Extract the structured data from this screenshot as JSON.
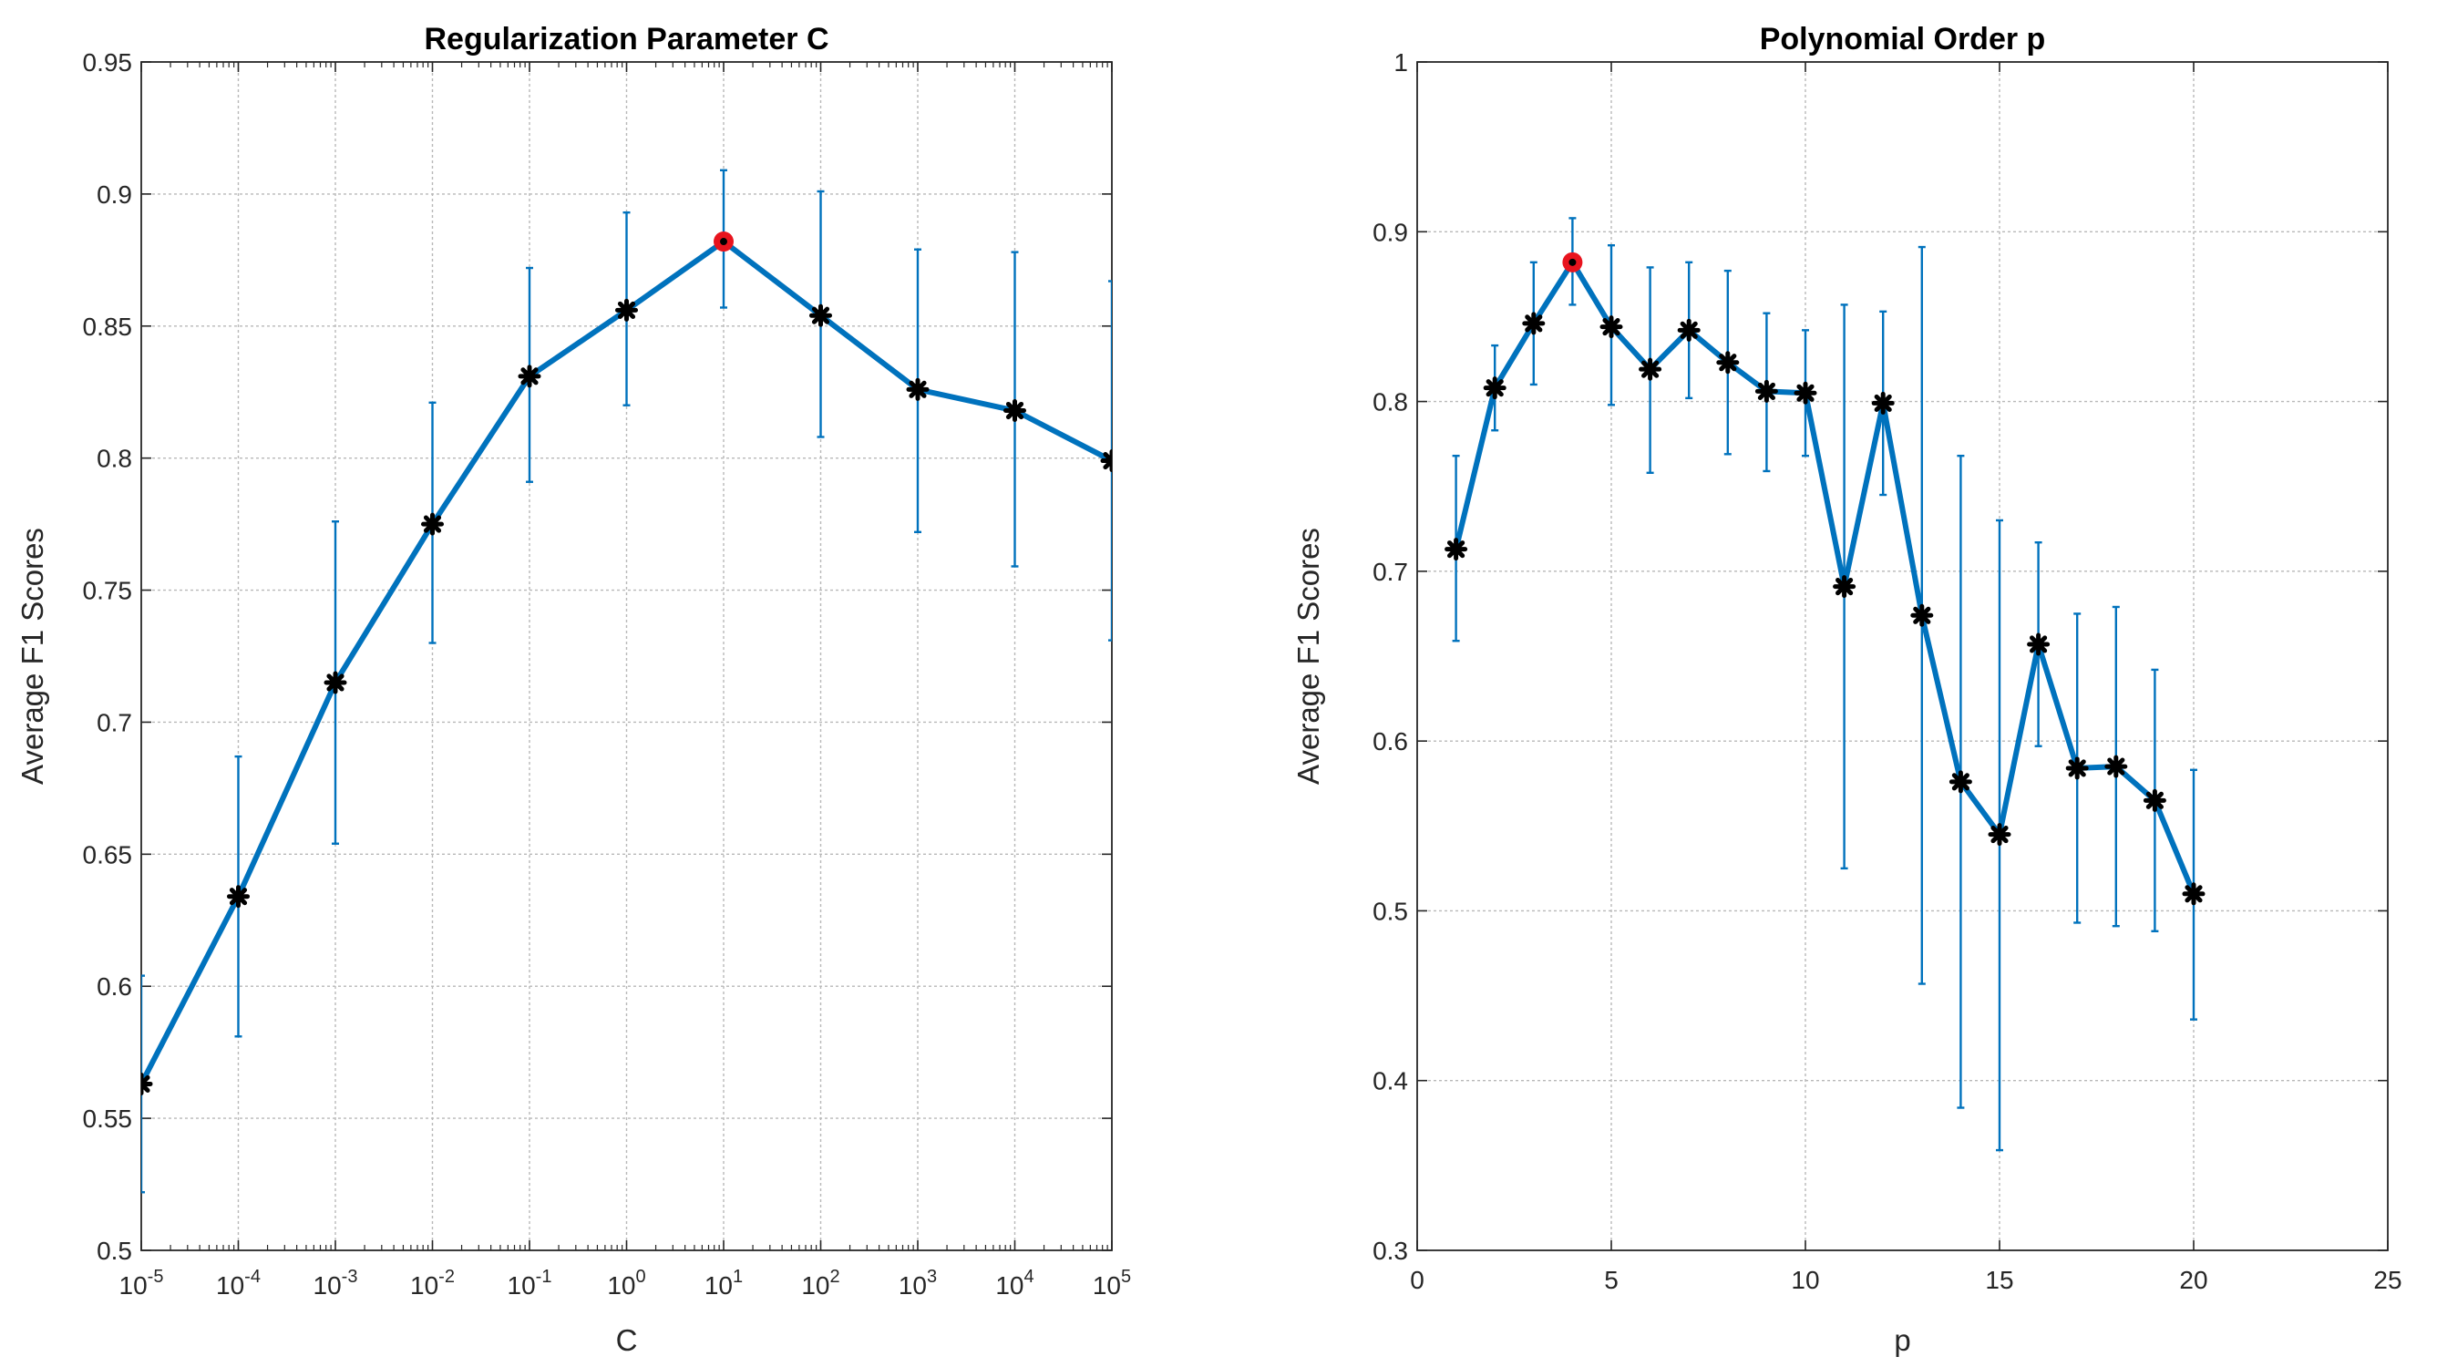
{
  "chart_data": [
    {
      "type": "line",
      "title": "Regularization Parameter C",
      "xlabel": "C",
      "ylabel": "Average F1 Scores",
      "xscale": "log",
      "xlim": [
        1e-05,
        100000
      ],
      "ylim": [
        0.5,
        0.95
      ],
      "xticks": [
        {
          "base": "10",
          "exp": "-5"
        },
        {
          "base": "10",
          "exp": "-4"
        },
        {
          "base": "10",
          "exp": "-3"
        },
        {
          "base": "10",
          "exp": "-2"
        },
        {
          "base": "10",
          "exp": "-1"
        },
        {
          "base": "10",
          "exp": "0"
        },
        {
          "base": "10",
          "exp": "1"
        },
        {
          "base": "10",
          "exp": "2"
        },
        {
          "base": "10",
          "exp": "3"
        },
        {
          "base": "10",
          "exp": "4"
        },
        {
          "base": "10",
          "exp": "5"
        }
      ],
      "yticks": [
        "0.5",
        "0.55",
        "0.6",
        "0.65",
        "0.7",
        "0.75",
        "0.8",
        "0.85",
        "0.9",
        "0.95"
      ],
      "grid": true,
      "line_color": "#0072BD",
      "marker_color": "#000000",
      "highlight_color": "#E8141E",
      "highlight_index": 6,
      "series": [
        {
          "x": [
            1e-05,
            0.0001,
            0.001,
            0.01,
            0.1,
            1,
            10,
            100,
            1000,
            10000,
            100000
          ],
          "values": [
            0.563,
            0.634,
            0.715,
            0.775,
            0.831,
            0.856,
            0.882,
            0.854,
            0.826,
            0.818,
            0.799
          ],
          "err_low": [
            0.522,
            0.581,
            0.654,
            0.73,
            0.791,
            0.82,
            0.857,
            0.808,
            0.772,
            0.759,
            0.731
          ],
          "err_high": [
            0.604,
            0.687,
            0.776,
            0.821,
            0.872,
            0.893,
            0.909,
            0.901,
            0.879,
            0.878,
            0.867
          ]
        }
      ]
    },
    {
      "type": "line",
      "title": "Polynomial Order p",
      "xlabel": "p",
      "ylabel": "Average F1 Scores",
      "xlim": [
        0,
        25
      ],
      "ylim": [
        0.3,
        1.0
      ],
      "xticks": [
        "0",
        "5",
        "10",
        "15",
        "20",
        "25"
      ],
      "yticks": [
        "0.3",
        "0.4",
        "0.5",
        "0.6",
        "0.7",
        "0.8",
        "0.9",
        "1"
      ],
      "grid": true,
      "line_color": "#0072BD",
      "marker_color": "#000000",
      "highlight_color": "#E8141E",
      "highlight_index": 3,
      "series": [
        {
          "x": [
            1,
            2,
            3,
            4,
            5,
            6,
            7,
            8,
            9,
            10,
            11,
            12,
            13,
            14,
            15,
            16,
            17,
            18,
            19,
            20
          ],
          "values": [
            0.713,
            0.808,
            0.846,
            0.882,
            0.844,
            0.819,
            0.842,
            0.823,
            0.806,
            0.805,
            0.691,
            0.799,
            0.674,
            0.576,
            0.545,
            0.657,
            0.584,
            0.585,
            0.565,
            0.51
          ],
          "err_low": [
            0.659,
            0.783,
            0.81,
            0.857,
            0.798,
            0.758,
            0.802,
            0.769,
            0.759,
            0.768,
            0.525,
            0.745,
            0.457,
            0.384,
            0.359,
            0.597,
            0.493,
            0.491,
            0.488,
            0.436
          ],
          "err_high": [
            0.768,
            0.833,
            0.882,
            0.908,
            0.892,
            0.879,
            0.882,
            0.877,
            0.852,
            0.842,
            0.857,
            0.853,
            0.891,
            0.768,
            0.73,
            0.717,
            0.675,
            0.679,
            0.642,
            0.583
          ]
        }
      ]
    }
  ]
}
